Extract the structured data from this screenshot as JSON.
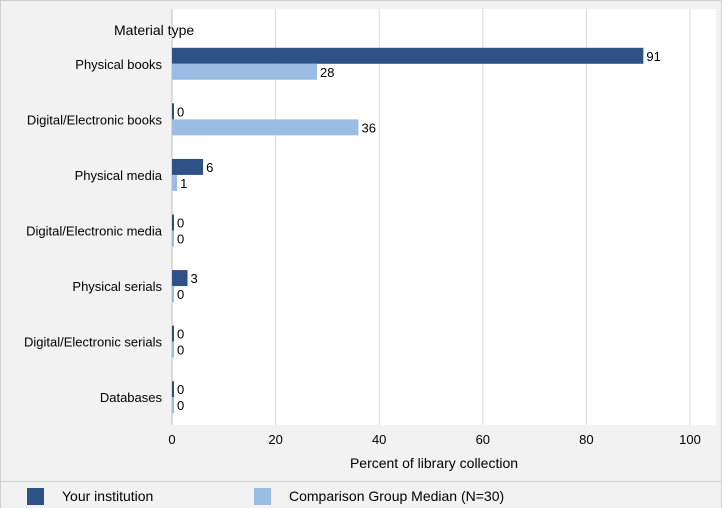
{
  "chart_data": {
    "type": "bar",
    "orientation": "horizontal",
    "ytitle": "Material type",
    "xlabel": "Percent of library collection",
    "xlim": [
      0,
      100
    ],
    "xticks": [
      0,
      20,
      40,
      60,
      80,
      100
    ],
    "grid": true,
    "categories": [
      "Physical books",
      "Digital/Electronic books",
      "Physical media",
      "Digital/Electronic media",
      "Physical serials",
      "Digital/Electronic serials",
      "Databases"
    ],
    "series": [
      {
        "name": "Your institution",
        "color": "#2f5286",
        "values": [
          91,
          0,
          6,
          0,
          3,
          0,
          0
        ]
      },
      {
        "name": "Comparison Group Median (N=30)",
        "color": "#9cbde3",
        "values": [
          28,
          36,
          1,
          0,
          0,
          0,
          0
        ]
      }
    ],
    "legend_position": "bottom"
  }
}
